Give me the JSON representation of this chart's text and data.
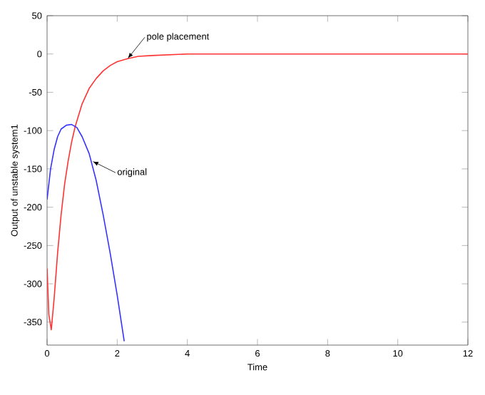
{
  "chart_data": {
    "type": "line",
    "xlabel": "Time",
    "ylabel": "Output of unstable system1",
    "xlim": [
      0,
      12
    ],
    "ylim": [
      -380,
      50
    ],
    "xticks": [
      0,
      2,
      4,
      6,
      8,
      10,
      12
    ],
    "yticks": [
      -350,
      -300,
      -250,
      -200,
      -150,
      -100,
      -50,
      0,
      50
    ],
    "series": [
      {
        "color": "#ff3333",
        "x": [
          0,
          0.05,
          0.12,
          0.2,
          0.3,
          0.4,
          0.5,
          0.6,
          0.7,
          0.8,
          1.0,
          1.2,
          1.4,
          1.6,
          1.8,
          2.0,
          2.3,
          2.6,
          3,
          4,
          6,
          12
        ],
        "values": [
          -280,
          -340,
          -360,
          -320,
          -260,
          -210,
          -170,
          -140,
          -115,
          -95,
          -65,
          -45,
          -32,
          -22,
          -15,
          -10,
          -6,
          -3,
          -2,
          0,
          0,
          0
        ]
      },
      {
        "color": "#3333ff",
        "x": [
          0,
          0.1,
          0.2,
          0.3,
          0.4,
          0.55,
          0.7,
          0.85,
          1.0,
          1.2,
          1.4,
          1.6,
          1.8,
          2.0,
          2.2
        ],
        "values": [
          -190,
          -150,
          -125,
          -108,
          -98,
          -93,
          -92,
          -96,
          -108,
          -130,
          -165,
          -210,
          -260,
          -315,
          -375
        ]
      }
    ],
    "annotations": [
      {
        "text": "pole placement",
        "x": 2.3,
        "y": -6
      },
      {
        "text": "original",
        "x": 1.3,
        "y": -140
      }
    ],
    "grid": false,
    "line_style": "solid",
    "marker": "none"
  }
}
